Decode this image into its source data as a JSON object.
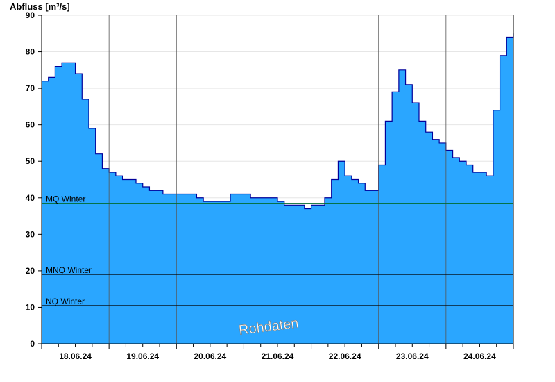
{
  "chart_data": {
    "type": "area",
    "ylabel": "Abfluss [m³/s]",
    "ylim": [
      0,
      90
    ],
    "yticks": [
      0,
      10,
      20,
      30,
      40,
      50,
      60,
      70,
      80,
      90
    ],
    "xlim": [
      0,
      7
    ],
    "day_labels": [
      "18.06.24",
      "19.06.24",
      "20.06.24",
      "21.06.24",
      "22.06.24",
      "23.06.24",
      "24.06.24"
    ],
    "x_day_offset": [
      0,
      0.1,
      0.2,
      0.3,
      0.4,
      0.5,
      0.6,
      0.7,
      0.8,
      0.9,
      1.0,
      1.1,
      1.2,
      1.3,
      1.4,
      1.5,
      1.6,
      1.7,
      1.8,
      1.9,
      2.0,
      2.1,
      2.2,
      2.3,
      2.4,
      2.5,
      2.6,
      2.7,
      2.8,
      2.9,
      3.0,
      3.1,
      3.2,
      3.3,
      3.4,
      3.5,
      3.6,
      3.7,
      3.8,
      3.9,
      4.0,
      4.1,
      4.2,
      4.3,
      4.4,
      4.5,
      4.6,
      4.7,
      4.8,
      4.9,
      5.0,
      5.1,
      5.2,
      5.3,
      5.4,
      5.5,
      5.6,
      5.7,
      5.8,
      5.9,
      6.0,
      6.1,
      6.2,
      6.3,
      6.4,
      6.5,
      6.6,
      6.7,
      6.8,
      6.9,
      7.0
    ],
    "series": [
      {
        "values": [
          72,
          73,
          76,
          77,
          77,
          74,
          67,
          59,
          52,
          48,
          47,
          46,
          45,
          45,
          44,
          43,
          42,
          42,
          41,
          41,
          41,
          41,
          41,
          40,
          39,
          39,
          39,
          39,
          41,
          41,
          41,
          40,
          40,
          40,
          40,
          39,
          38,
          38,
          38,
          37,
          38,
          38,
          40,
          45,
          50,
          46,
          45,
          44,
          42,
          42,
          49,
          61,
          69,
          75,
          71,
          66,
          61,
          58,
          56,
          55,
          53,
          51,
          50,
          49,
          47,
          47,
          46,
          64,
          79,
          84,
          85
        ]
      }
    ],
    "reference_lines": [
      {
        "label": "MQ Winter",
        "value": 38.5
      },
      {
        "label": "MNQ Winter",
        "value": 19
      },
      {
        "label": "NQ Winter",
        "value": 10.5
      }
    ],
    "annotation": "Rohdaten",
    "colors": {
      "fill": "#2aa6ff",
      "line": "#00009a",
      "mq_line": "#006b2f",
      "ref_line": "#000000",
      "grid": "#555555"
    }
  }
}
